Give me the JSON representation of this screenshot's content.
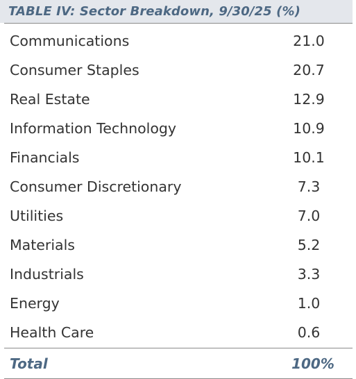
{
  "table": {
    "title": "TABLE IV: Sector Breakdown, 9/30/25 (%)",
    "rows": [
      {
        "sector": "Communications",
        "value": "21.0"
      },
      {
        "sector": "Consumer Staples",
        "value": "20.7"
      },
      {
        "sector": "Real Estate",
        "value": "12.9"
      },
      {
        "sector": "Information Technology",
        "value": "10.9"
      },
      {
        "sector": "Financials",
        "value": "10.1"
      },
      {
        "sector": "Consumer Discretionary",
        "value": "7.3"
      },
      {
        "sector": "Utilities",
        "value": "7.0"
      },
      {
        "sector": "Materials",
        "value": "5.2"
      },
      {
        "sector": "Industrials",
        "value": "3.3"
      },
      {
        "sector": "Energy",
        "value": "1.0"
      },
      {
        "sector": "Health Care",
        "value": "0.6"
      }
    ],
    "total": {
      "label": "Total",
      "value": "100%"
    }
  },
  "colors": {
    "title_background": "#e4e7ec",
    "accent_text": "#4d6883",
    "body_text": "#333333",
    "rule": "#8a8a8a"
  }
}
